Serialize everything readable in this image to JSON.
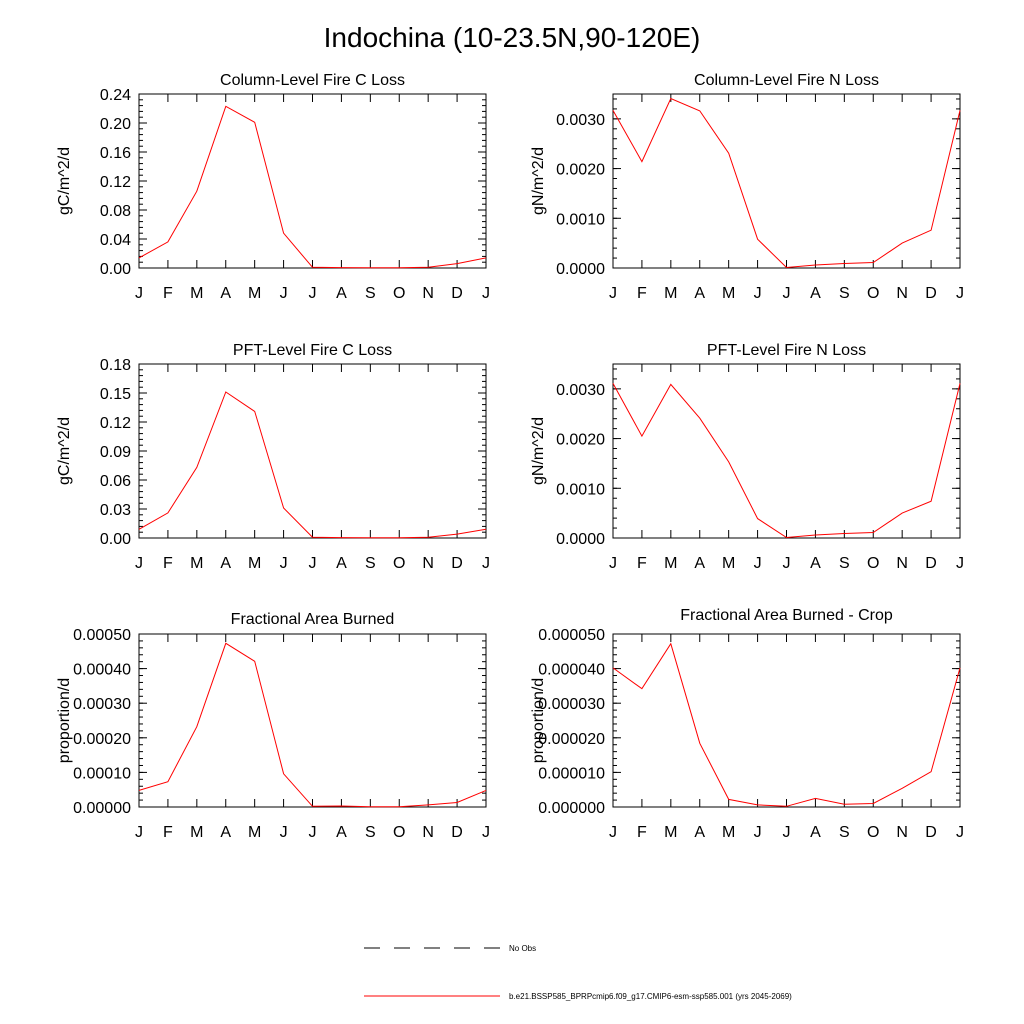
{
  "page": {
    "title": "Indochina (10-23.5N,90-120E)"
  },
  "legend": {
    "placement": "bottom-center",
    "items": [
      {
        "label": "No Obs",
        "color": "#000000",
        "style": "dashed"
      },
      {
        "label": "b.e21.BSSP585_BPRPcmip6.f09_g17.CMIP6-esm-ssp585.001 (yrs 2045-2069)",
        "color": "#ff0000",
        "style": "solid"
      }
    ]
  },
  "chart_data": [
    {
      "type": "line",
      "title": "Column-Level Fire C Loss",
      "ylabel": "gC/m^2/d",
      "categories": [
        "J",
        "F",
        "M",
        "A",
        "M",
        "J",
        "J",
        "A",
        "S",
        "O",
        "N",
        "D",
        "J"
      ],
      "ylim": [
        0,
        0.24
      ],
      "yticks": [
        "0.00",
        "0.04",
        "0.08",
        "0.12",
        "0.16",
        "0.20",
        "0.24"
      ],
      "series": [
        {
          "color": "#ff0000",
          "values": [
            0.014,
            0.036,
            0.106,
            0.223,
            0.201,
            0.048,
            0.001,
            0.0005,
            0.0003,
            0.0004,
            0.001,
            0.006,
            0.014
          ]
        }
      ]
    },
    {
      "type": "line",
      "title": "Column-Level Fire N Loss",
      "ylabel": "gN/m^2/d",
      "categories": [
        "J",
        "F",
        "M",
        "A",
        "M",
        "J",
        "J",
        "A",
        "S",
        "O",
        "N",
        "D",
        "J"
      ],
      "ylim": [
        0,
        0.0035
      ],
      "yticks": [
        "0.0000",
        "0.0010",
        "0.0020",
        "0.0030"
      ],
      "series": [
        {
          "color": "#ff0000",
          "values": [
            0.00317,
            0.00214,
            0.00341,
            0.00316,
            0.00231,
            0.00058,
            1e-05,
            6e-05,
            9e-05,
            0.00011,
            0.0005,
            0.00076,
            0.00317
          ]
        }
      ]
    },
    {
      "type": "line",
      "title": "PFT-Level Fire C Loss",
      "ylabel": "gC/m^2/d",
      "categories": [
        "J",
        "F",
        "M",
        "A",
        "M",
        "J",
        "J",
        "A",
        "S",
        "O",
        "N",
        "D",
        "J"
      ],
      "ylim": [
        0,
        0.18
      ],
      "yticks": [
        "0.00",
        "0.03",
        "0.06",
        "0.09",
        "0.12",
        "0.15",
        "0.18"
      ],
      "series": [
        {
          "color": "#ff0000",
          "values": [
            0.009,
            0.026,
            0.073,
            0.151,
            0.131,
            0.031,
            0.0008,
            0.0004,
            0.0003,
            0.0003,
            0.0008,
            0.004,
            0.009
          ]
        }
      ]
    },
    {
      "type": "line",
      "title": "PFT-Level Fire N Loss",
      "ylabel": "gN/m^2/d",
      "categories": [
        "J",
        "F",
        "M",
        "A",
        "M",
        "J",
        "J",
        "A",
        "S",
        "O",
        "N",
        "D",
        "J"
      ],
      "ylim": [
        0,
        0.0035
      ],
      "yticks": [
        "0.0000",
        "0.0010",
        "0.0020",
        "0.0030"
      ],
      "series": [
        {
          "color": "#ff0000",
          "values": [
            0.00311,
            0.00205,
            0.00309,
            0.00241,
            0.00153,
            0.00039,
            1e-05,
            6e-05,
            9e-05,
            0.00011,
            0.0005,
            0.00074,
            0.00311
          ]
        }
      ]
    },
    {
      "type": "line",
      "title": "Fractional Area Burned",
      "ylabel": "proportion/d",
      "categories": [
        "J",
        "F",
        "M",
        "A",
        "M",
        "J",
        "J",
        "A",
        "S",
        "O",
        "N",
        "D",
        "J"
      ],
      "ylim": [
        0,
        0.0005
      ],
      "yticks": [
        "0.00000",
        "0.00010",
        "0.00020",
        "0.00030",
        "0.00040",
        "0.00050"
      ],
      "series": [
        {
          "color": "#ff0000",
          "values": [
            4.8e-05,
            7.3e-05,
            0.000232,
            0.000473,
            0.000421,
            9.6e-05,
            2e-06,
            3e-06,
            1e-06,
            1e-06,
            6e-06,
            1.3e-05,
            4.8e-05
          ]
        }
      ]
    },
    {
      "type": "line",
      "title": "Fractional Area Burned - Crop",
      "ylabel": "proportion/d",
      "categories": [
        "J",
        "F",
        "M",
        "A",
        "M",
        "J",
        "J",
        "A",
        "S",
        "O",
        "N",
        "D",
        "J"
      ],
      "ylim": [
        0,
        5e-05
      ],
      "yticks": [
        "0.000000",
        "0.000010",
        "0.000020",
        "0.000030",
        "0.000040",
        "0.000050"
      ],
      "series": [
        {
          "color": "#ff0000",
          "values": [
            4.02e-05,
            3.42e-05,
            4.72e-05,
            1.84e-05,
            2.2e-06,
            6e-07,
            2e-07,
            2.5e-06,
            8e-07,
            1e-06,
            5.4e-06,
            1.02e-05,
            4.02e-05
          ]
        }
      ]
    }
  ]
}
